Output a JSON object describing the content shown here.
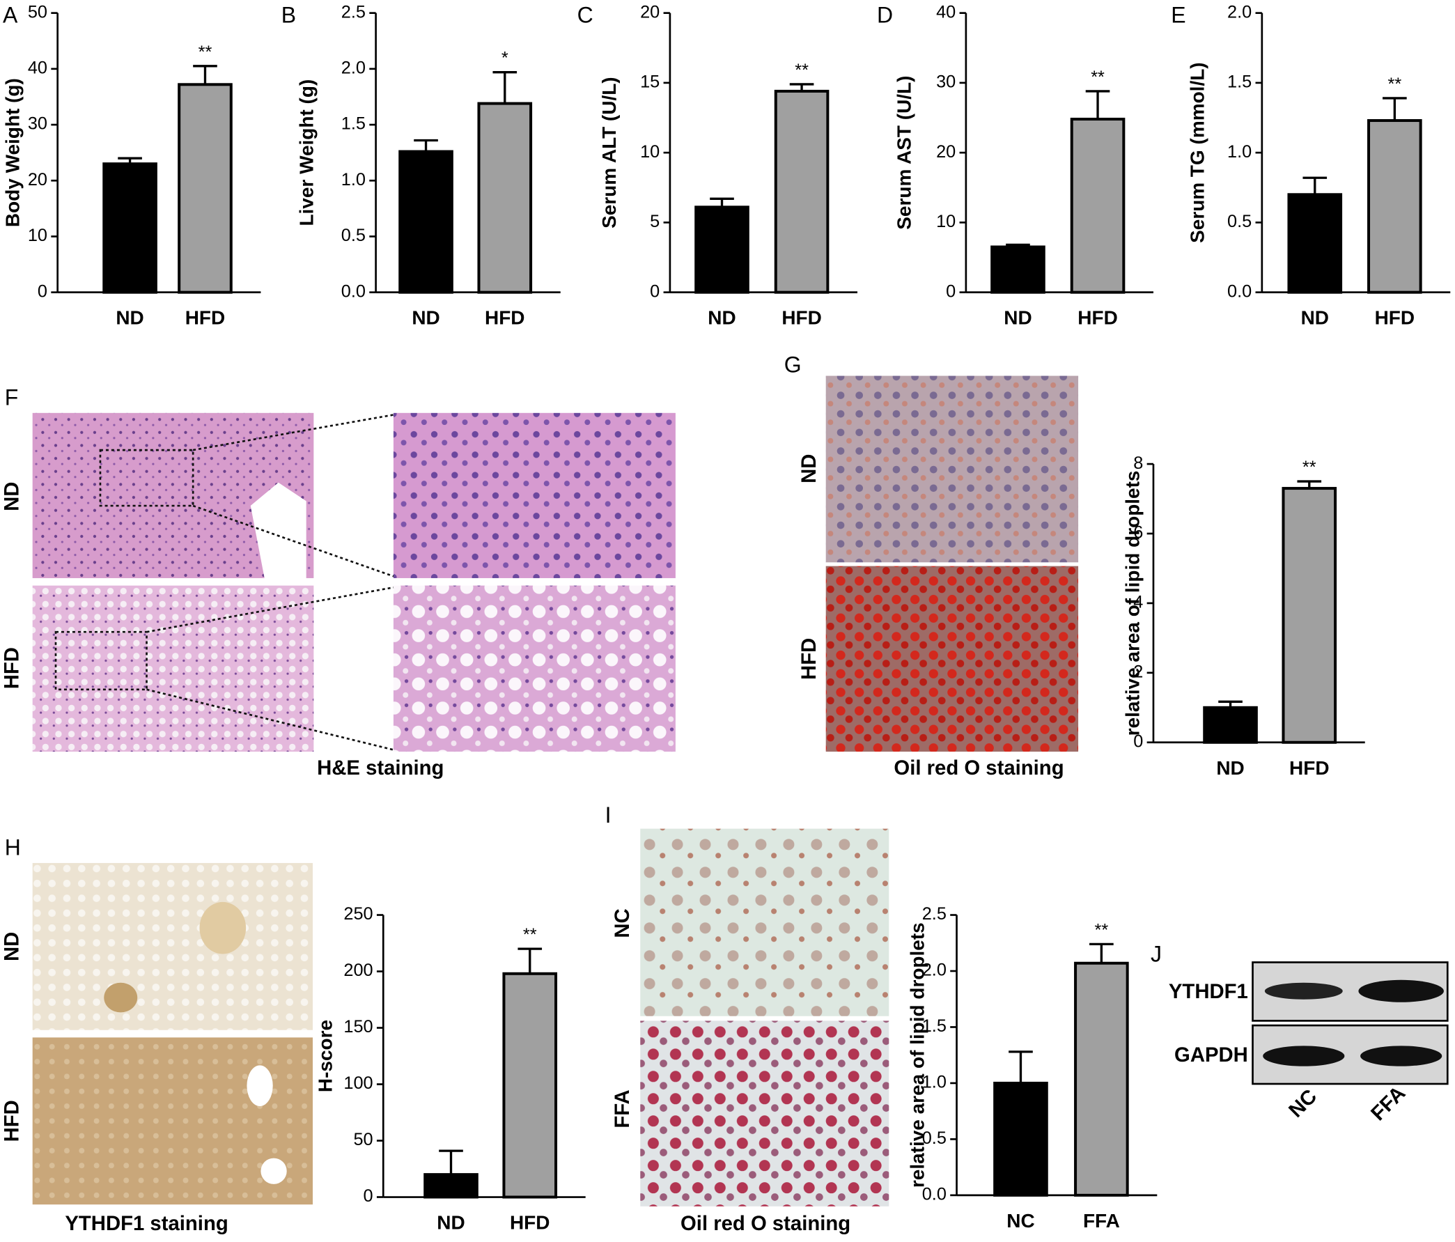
{
  "chart_data": [
    {
      "type": "bar",
      "panel": "A",
      "ylabel": "Body Weight (g)",
      "categories": [
        "ND",
        "HFD"
      ],
      "values": [
        23,
        37.2
      ],
      "errors": [
        1,
        3.3
      ],
      "colors": [
        "#000000",
        "#a0a0a0"
      ],
      "significance": "**",
      "ylim": [
        0,
        50
      ],
      "yticks": [
        0,
        10,
        20,
        30,
        40,
        50
      ]
    },
    {
      "type": "bar",
      "panel": "B",
      "ylabel": "Liver Weight (g)",
      "categories": [
        "ND",
        "HFD"
      ],
      "values": [
        1.26,
        1.69
      ],
      "errors": [
        0.1,
        0.28
      ],
      "colors": [
        "#000000",
        "#a0a0a0"
      ],
      "significance": "*",
      "ylim": [
        0,
        2.5
      ],
      "yticks": [
        {
          "value": 0,
          "label": "0.0"
        },
        0.5,
        {
          "value": 1,
          "label": "1.0"
        },
        1.5,
        {
          "value": 2,
          "label": "2.0"
        },
        2.5
      ]
    },
    {
      "type": "bar",
      "panel": "C",
      "ylabel": "Serum ALT (U/L)",
      "categories": [
        "ND",
        "HFD"
      ],
      "values": [
        6.1,
        14.4
      ],
      "errors": [
        0.6,
        0.5
      ],
      "colors": [
        "#000000",
        "#a0a0a0"
      ],
      "significance": "**",
      "ylim": [
        0,
        20
      ],
      "yticks": [
        0,
        5,
        10,
        15,
        20
      ]
    },
    {
      "type": "bar",
      "panel": "D",
      "ylabel": "Serum AST (U/L)",
      "categories": [
        "ND",
        "HFD"
      ],
      "values": [
        6.5,
        24.8
      ],
      "errors": [
        0.3,
        4
      ],
      "colors": [
        "#000000",
        "#a0a0a0"
      ],
      "significance": "**",
      "ylim": [
        0,
        40
      ],
      "yticks": [
        0,
        10,
        20,
        30,
        40
      ]
    },
    {
      "type": "bar",
      "panel": "E",
      "ylabel": "Serum TG (mmol/L)",
      "categories": [
        "ND",
        "HFD"
      ],
      "values": [
        0.7,
        1.23
      ],
      "errors": [
        0.12,
        0.16
      ],
      "colors": [
        "#000000",
        "#a0a0a0"
      ],
      "significance": "**",
      "ylim": [
        0,
        2
      ],
      "yticks": [
        {
          "value": 0,
          "label": "0.0"
        },
        0.5,
        {
          "value": 1,
          "label": "1.0"
        },
        1.5,
        {
          "value": 2,
          "label": "2.0"
        }
      ]
    },
    {
      "type": "bar",
      "ylabel": "relative area of lipid droplets",
      "categories": [
        "ND",
        "HFD"
      ],
      "values": [
        1,
        7.3
      ],
      "errors": [
        0.17,
        0.2
      ],
      "colors": [
        "#000000",
        "#a0a0a0"
      ],
      "significance": "**",
      "ylim": [
        0,
        8
      ],
      "yticks": [
        0,
        2,
        4,
        6,
        8
      ]
    },
    {
      "type": "bar",
      "ylabel": "H-score",
      "categories": [
        "ND",
        "HFD"
      ],
      "values": [
        20,
        198
      ],
      "errors": [
        21,
        22
      ],
      "colors": [
        "#000000",
        "#a0a0a0"
      ],
      "significance": "**",
      "ylim": [
        0,
        250
      ],
      "yticks": [
        0,
        50,
        100,
        150,
        200,
        250
      ]
    },
    {
      "type": "bar",
      "ylabel": "relative area of lipid droplets",
      "categories": [
        "NC",
        "FFA"
      ],
      "values": [
        1,
        2.07
      ],
      "errors": [
        0.28,
        0.17
      ],
      "colors": [
        "#000000",
        "#a0a0a0"
      ],
      "significance": "**",
      "ylim": [
        0,
        2.5
      ],
      "yticks": [
        {
          "value": 0,
          "label": "0.0"
        },
        0.5,
        {
          "value": 1,
          "label": "1.0"
        },
        1.5,
        {
          "value": 2,
          "label": "2.0"
        },
        2.5
      ]
    }
  ],
  "images": [
    {
      "panel": "F",
      "rows": [
        "ND",
        "HFD"
      ],
      "caption": "H&E staining"
    },
    {
      "panel": "G",
      "rows": [
        "ND",
        "HFD"
      ],
      "caption": "Oil red O staining"
    },
    {
      "panel": "H",
      "rows": [
        "ND",
        "HFD"
      ],
      "caption": "YTHDF1 staining"
    },
    {
      "panel": "I",
      "rows": [
        "NC",
        "FFA"
      ],
      "caption": "Oil red O staining"
    }
  ],
  "blot": {
    "panel": "J",
    "bands": [
      "YTHDF1",
      "GAPDH"
    ],
    "lanes": [
      "NC",
      "FFA"
    ]
  }
}
